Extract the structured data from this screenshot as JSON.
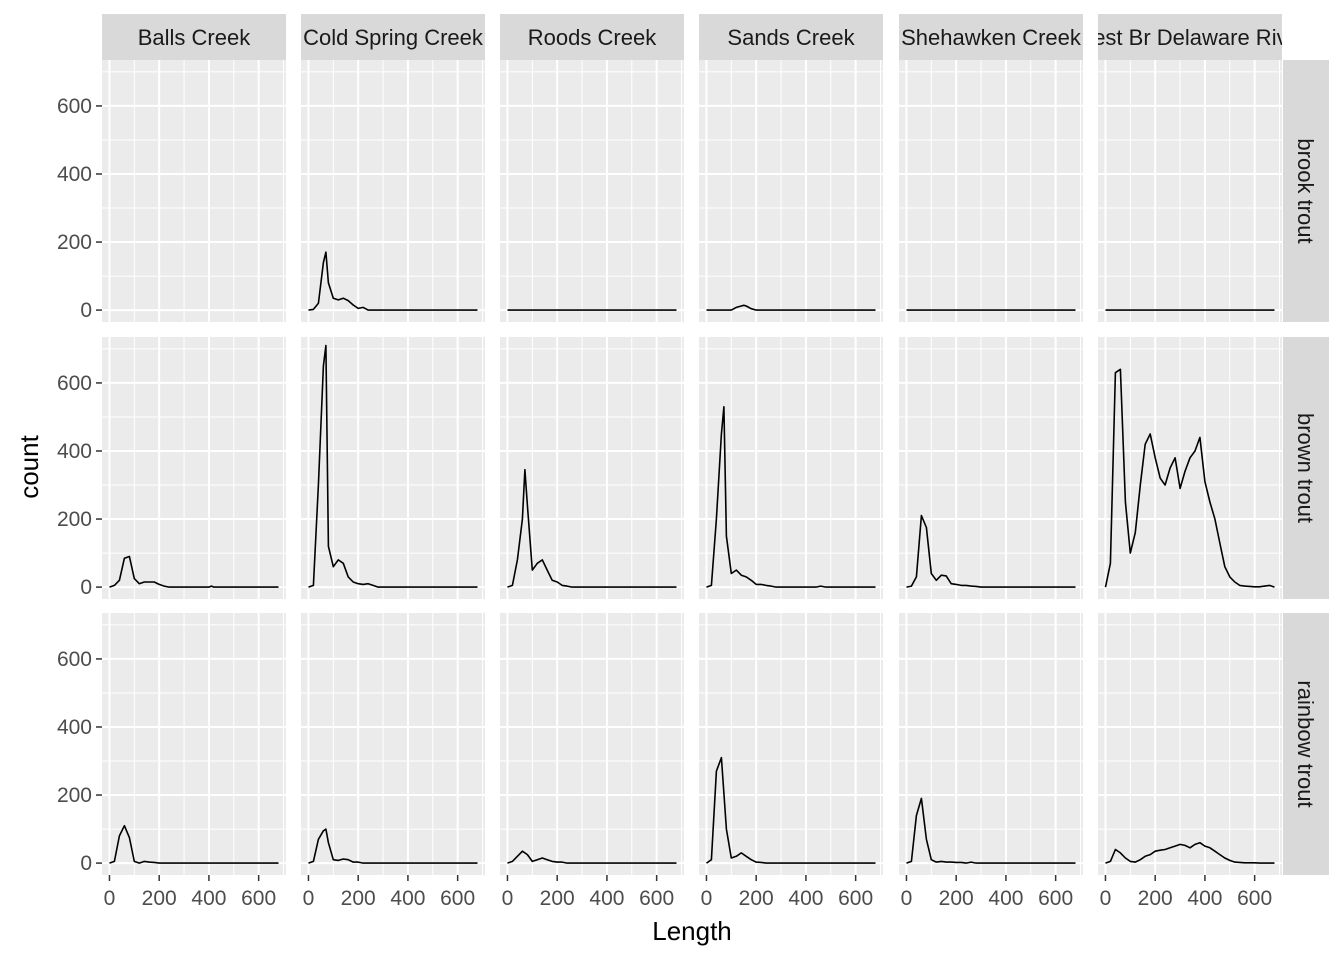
{
  "chart_data": {
    "type": "line",
    "xlabel": "Length",
    "ylabel": "count",
    "xlim": [
      -30,
      710
    ],
    "ylim": [
      -35,
      735
    ],
    "x_ticks": [
      0,
      200,
      400,
      600
    ],
    "y_ticks": [
      0,
      200,
      400,
      600
    ],
    "columns": [
      "Balls Creek",
      "Cold Spring Creek",
      "Roods Creek",
      "Sands Creek",
      "Shehawken Creek",
      "West Br Delaware River"
    ],
    "rows": [
      "brook trout",
      "brown trout",
      "rainbow trout"
    ],
    "colors": {
      "panel_bg": "#ebebeb",
      "grid": "#ffffff",
      "strip_bg": "#d9d9d9",
      "line": "#000000",
      "text": "#4d4d4d"
    },
    "panels": [
      {
        "row": "brook trout",
        "col": "Balls Creek",
        "x": [],
        "y": []
      },
      {
        "row": "brook trout",
        "col": "Cold Spring Creek",
        "x": [
          0,
          20,
          40,
          60,
          70,
          80,
          100,
          120,
          140,
          160,
          180,
          200,
          220,
          240,
          680
        ],
        "y": [
          0,
          2,
          20,
          140,
          170,
          80,
          35,
          30,
          35,
          28,
          15,
          5,
          8,
          0,
          0
        ]
      },
      {
        "row": "brook trout",
        "col": "Roods Creek",
        "x": [
          0,
          680
        ],
        "y": [
          0,
          0
        ]
      },
      {
        "row": "brook trout",
        "col": "Sands Creek",
        "x": [
          0,
          100,
          120,
          140,
          150,
          160,
          180,
          200,
          680
        ],
        "y": [
          0,
          0,
          8,
          12,
          14,
          12,
          4,
          0,
          0
        ]
      },
      {
        "row": "brook trout",
        "col": "Shehawken Creek",
        "x": [
          0,
          680
        ],
        "y": [
          0,
          0
        ]
      },
      {
        "row": "brook trout",
        "col": "West Br Delaware River",
        "x": [
          0,
          680
        ],
        "y": [
          0,
          0
        ]
      },
      {
        "row": "brown trout",
        "col": "Balls Creek",
        "x": [
          0,
          20,
          40,
          60,
          80,
          100,
          120,
          140,
          160,
          180,
          200,
          220,
          240,
          400,
          410,
          420,
          680
        ],
        "y": [
          0,
          5,
          20,
          85,
          90,
          25,
          10,
          15,
          15,
          15,
          8,
          3,
          0,
          0,
          3,
          0,
          0
        ]
      },
      {
        "row": "brown trout",
        "col": "Cold Spring Creek",
        "x": [
          0,
          20,
          40,
          60,
          70,
          80,
          100,
          120,
          140,
          160,
          180,
          200,
          220,
          240,
          260,
          280,
          300,
          680
        ],
        "y": [
          0,
          5,
          300,
          650,
          710,
          120,
          60,
          80,
          70,
          30,
          15,
          10,
          8,
          10,
          5,
          0,
          0,
          0
        ]
      },
      {
        "row": "brown trout",
        "col": "Roods Creek",
        "x": [
          0,
          20,
          40,
          60,
          70,
          80,
          100,
          120,
          140,
          160,
          180,
          200,
          220,
          240,
          260,
          280,
          300,
          680
        ],
        "y": [
          0,
          5,
          80,
          200,
          345,
          240,
          50,
          70,
          80,
          50,
          20,
          15,
          5,
          3,
          0,
          0,
          0,
          0
        ]
      },
      {
        "row": "brown trout",
        "col": "Sands Creek",
        "x": [
          0,
          20,
          40,
          60,
          70,
          80,
          100,
          120,
          140,
          160,
          180,
          200,
          220,
          240,
          260,
          280,
          300,
          440,
          460,
          480,
          680
        ],
        "y": [
          0,
          5,
          200,
          450,
          530,
          150,
          40,
          50,
          35,
          30,
          20,
          8,
          8,
          5,
          3,
          0,
          0,
          0,
          3,
          0,
          0
        ]
      },
      {
        "row": "brown trout",
        "col": "Shehawken Creek",
        "x": [
          0,
          20,
          40,
          60,
          80,
          100,
          120,
          140,
          160,
          180,
          200,
          220,
          240,
          260,
          280,
          300,
          680
        ],
        "y": [
          0,
          3,
          30,
          210,
          175,
          40,
          20,
          35,
          33,
          10,
          8,
          5,
          5,
          3,
          2,
          0,
          0
        ]
      },
      {
        "row": "brown trout",
        "col": "West Br Delaware River",
        "x": [
          0,
          20,
          40,
          60,
          80,
          100,
          120,
          140,
          160,
          180,
          200,
          220,
          240,
          260,
          280,
          300,
          320,
          340,
          360,
          380,
          400,
          420,
          440,
          460,
          480,
          500,
          520,
          540,
          560,
          580,
          600,
          620,
          640,
          660,
          680
        ],
        "y": [
          0,
          70,
          630,
          640,
          250,
          100,
          160,
          300,
          420,
          450,
          380,
          320,
          300,
          350,
          380,
          290,
          340,
          380,
          400,
          440,
          310,
          250,
          200,
          130,
          60,
          30,
          15,
          5,
          3,
          2,
          1,
          1,
          3,
          5,
          0
        ]
      },
      {
        "row": "rainbow trout",
        "col": "Balls Creek",
        "x": [
          0,
          20,
          40,
          60,
          80,
          100,
          120,
          140,
          160,
          180,
          200,
          680
        ],
        "y": [
          0,
          5,
          80,
          110,
          75,
          5,
          0,
          5,
          3,
          2,
          0,
          0
        ]
      },
      {
        "row": "rainbow trout",
        "col": "Cold Spring Creek",
        "x": [
          0,
          20,
          40,
          60,
          70,
          80,
          100,
          120,
          140,
          160,
          180,
          200,
          220,
          240,
          680
        ],
        "y": [
          0,
          5,
          70,
          95,
          100,
          60,
          10,
          8,
          12,
          10,
          3,
          3,
          0,
          0,
          0
        ]
      },
      {
        "row": "rainbow trout",
        "col": "Roods Creek",
        "x": [
          0,
          20,
          40,
          60,
          80,
          100,
          120,
          140,
          160,
          180,
          200,
          220,
          240,
          260,
          680
        ],
        "y": [
          0,
          5,
          20,
          35,
          25,
          5,
          10,
          15,
          10,
          5,
          3,
          3,
          0,
          0,
          0
        ]
      },
      {
        "row": "rainbow trout",
        "col": "Sands Creek",
        "x": [
          0,
          20,
          40,
          60,
          80,
          100,
          120,
          140,
          160,
          180,
          200,
          220,
          240,
          680
        ],
        "y": [
          0,
          10,
          270,
          310,
          100,
          15,
          20,
          30,
          20,
          10,
          3,
          2,
          0,
          0
        ]
      },
      {
        "row": "rainbow trout",
        "col": "Shehawken Creek",
        "x": [
          0,
          20,
          40,
          60,
          80,
          100,
          120,
          140,
          160,
          180,
          200,
          220,
          240,
          260,
          280,
          680
        ],
        "y": [
          0,
          5,
          140,
          190,
          70,
          10,
          3,
          5,
          3,
          3,
          2,
          2,
          0,
          3,
          0,
          0
        ]
      },
      {
        "row": "rainbow trout",
        "col": "West Br Delaware River",
        "x": [
          0,
          20,
          40,
          60,
          80,
          100,
          120,
          140,
          160,
          180,
          200,
          220,
          240,
          260,
          280,
          300,
          320,
          340,
          360,
          380,
          400,
          420,
          440,
          460,
          480,
          500,
          520,
          540,
          560,
          580,
          600,
          620,
          640,
          660,
          680
        ],
        "y": [
          0,
          5,
          40,
          30,
          15,
          5,
          3,
          10,
          20,
          25,
          35,
          38,
          40,
          45,
          50,
          55,
          52,
          45,
          55,
          60,
          50,
          45,
          35,
          25,
          15,
          8,
          3,
          2,
          1,
          1,
          1,
          0,
          0,
          0,
          0
        ]
      }
    ]
  }
}
